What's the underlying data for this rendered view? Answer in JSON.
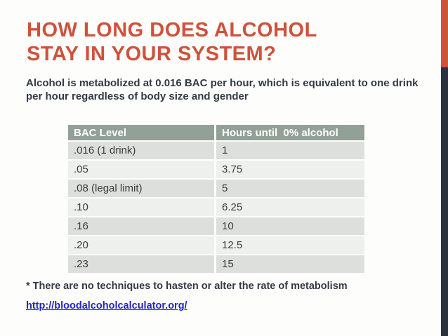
{
  "slide": {
    "title_line1": "HOW LONG DOES ALCOHOL",
    "title_line2": "STAY IN YOUR SYSTEM?",
    "subtitle": "Alcohol is metabolized at 0.016 BAC per hour, which is equivalent to one drink per hour regardless of body size and gender",
    "footnote": "* There are no techniques to hasten or alter the rate of metabolism",
    "link": "http://bloodalcoholcalculator.org/"
  },
  "table": {
    "headers": [
      "BAC Level",
      "Hours until  0% alcohol"
    ],
    "rows": [
      [
        ".016 (1 drink)",
        "1"
      ],
      [
        ".05",
        "3.75"
      ],
      [
        ".08 (legal limit)",
        "5"
      ],
      [
        ".10",
        "6.25"
      ],
      [
        ".16",
        "10"
      ],
      [
        ".20",
        "12.5"
      ],
      [
        ".23",
        "15"
      ]
    ]
  },
  "chart_data": {
    "type": "table",
    "title": "HOW LONG DOES ALCOHOL STAY IN YOUR SYSTEM?",
    "columns": [
      "BAC Level",
      "Hours until 0% alcohol"
    ],
    "bac_levels": [
      ".016 (1 drink)",
      ".05",
      ".08 (legal limit)",
      ".10",
      ".16",
      ".20",
      ".23"
    ],
    "hours_until_zero": [
      1,
      3.75,
      5,
      6.25,
      10,
      12.5,
      15
    ],
    "note": "Alcohol is metabolized at 0.016 BAC per hour"
  },
  "colors": {
    "accent_orange": "#d0513b",
    "stripe_navy": "#2a323e",
    "table_header_green": "#92a197",
    "row_band_dark": "#dcdfdc",
    "row_band_light": "#eef0ee",
    "body_text": "#333a45",
    "link_blue": "#2323c3"
  }
}
